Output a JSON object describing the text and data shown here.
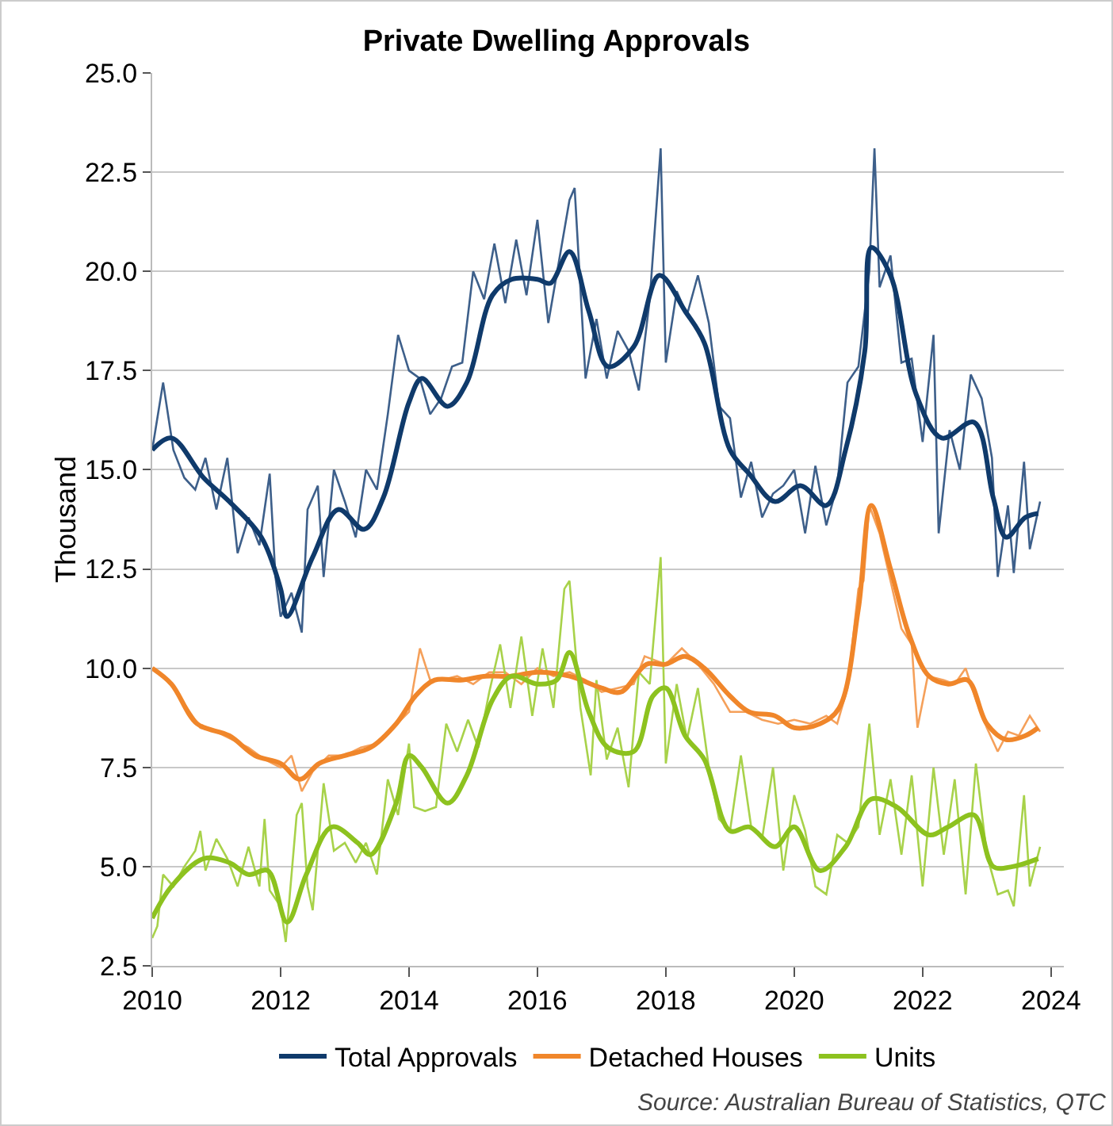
{
  "chart_data": {
    "type": "line",
    "title": "Private Dwelling Approvals",
    "ylabel": "Thousand",
    "xlim": [
      2010,
      2024.2
    ],
    "xticks": [
      2010,
      2012,
      2014,
      2016,
      2018,
      2020,
      2022,
      2024
    ],
    "ylim": [
      2.5,
      25
    ],
    "yticks": [
      {
        "value": 2.5,
        "label": "2.5"
      },
      {
        "value": 5,
        "label": "5.0"
      },
      {
        "value": 7.5,
        "label": "7.5"
      },
      {
        "value": 10,
        "label": "10.0"
      },
      {
        "value": 12.5,
        "label": "12.5"
      },
      {
        "value": 15,
        "label": "15.0"
      },
      {
        "value": 17.5,
        "label": "17.5"
      },
      {
        "value": 20,
        "label": "20.0"
      },
      {
        "value": 22.5,
        "label": "22.5"
      },
      {
        "value": 25,
        "label": "25.0"
      }
    ],
    "grid": "y",
    "legend": "bottom",
    "line_style": "solid",
    "marker": "none",
    "annotations": [
      "Source: Australian Bureau of Statistics, QTC"
    ],
    "series": [
      {
        "color": "#3d5f8a",
        "x": [
          2010.0,
          2010.17,
          2010.33,
          2010.5,
          2010.67,
          2010.83,
          2011.0,
          2011.17,
          2011.33,
          2011.5,
          2011.67,
          2011.83,
          2011.92,
          2012.0,
          2012.17,
          2012.33,
          2012.42,
          2012.58,
          2012.67,
          2012.83,
          2013.0,
          2013.17,
          2013.33,
          2013.5,
          2013.67,
          2013.83,
          2014.0,
          2014.17,
          2014.33,
          2014.5,
          2014.67,
          2014.83,
          2015.0,
          2015.17,
          2015.33,
          2015.5,
          2015.67,
          2015.83,
          2016.0,
          2016.17,
          2016.33,
          2016.5,
          2016.58,
          2016.75,
          2016.92,
          2017.08,
          2017.25,
          2017.42,
          2017.58,
          2017.75,
          2017.92,
          2018.0,
          2018.17,
          2018.33,
          2018.5,
          2018.67,
          2018.83,
          2019.0,
          2019.17,
          2019.33,
          2019.5,
          2019.67,
          2019.83,
          2020.0,
          2020.17,
          2020.33,
          2020.5,
          2020.67,
          2020.83,
          2021.0,
          2021.17,
          2021.25,
          2021.33,
          2021.5,
          2021.67,
          2021.83,
          2022.0,
          2022.17,
          2022.25,
          2022.42,
          2022.58,
          2022.75,
          2022.92,
          2023.08,
          2023.17,
          2023.33,
          2023.42,
          2023.58,
          2023.67,
          2023.83
        ],
        "values": [
          15.5,
          17.2,
          15.5,
          14.8,
          14.5,
          15.3,
          14.0,
          15.3,
          12.9,
          13.8,
          13.1,
          14.9,
          12.3,
          11.3,
          11.9,
          10.9,
          14.0,
          14.6,
          12.3,
          15.0,
          14.2,
          13.3,
          15.0,
          14.5,
          16.4,
          18.4,
          17.5,
          17.3,
          16.4,
          16.8,
          17.6,
          17.7,
          20.0,
          19.3,
          20.7,
          19.2,
          20.8,
          19.4,
          21.3,
          18.7,
          20.2,
          21.8,
          22.1,
          17.3,
          18.8,
          17.3,
          18.5,
          18.0,
          17.0,
          19.3,
          23.1,
          17.7,
          19.5,
          18.9,
          19.9,
          18.7,
          16.6,
          16.3,
          14.3,
          15.2,
          13.8,
          14.4,
          14.6,
          15.0,
          13.4,
          15.1,
          13.6,
          14.6,
          17.2,
          17.6,
          20.0,
          23.1,
          19.6,
          20.4,
          17.7,
          17.8,
          15.7,
          18.4,
          13.4,
          16.0,
          15.0,
          17.4,
          16.8,
          15.3,
          12.3,
          14.1,
          12.4,
          15.2,
          13.0,
          14.2
        ]
      },
      {
        "color": "#f5a05a",
        "x": [
          2010.0,
          2010.25,
          2010.5,
          2010.75,
          2011.0,
          2011.25,
          2011.5,
          2011.75,
          2012.0,
          2012.17,
          2012.33,
          2012.5,
          2012.75,
          2013.0,
          2013.25,
          2013.5,
          2013.75,
          2014.0,
          2014.17,
          2014.33,
          2014.5,
          2014.75,
          2015.0,
          2015.25,
          2015.5,
          2015.75,
          2016.0,
          2016.25,
          2016.5,
          2016.75,
          2017.0,
          2017.25,
          2017.5,
          2017.67,
          2017.83,
          2018.0,
          2018.25,
          2018.5,
          2018.75,
          2019.0,
          2019.25,
          2019.5,
          2019.75,
          2020.0,
          2020.25,
          2020.5,
          2020.67,
          2020.83,
          2021.0,
          2021.08,
          2021.17,
          2021.33,
          2021.5,
          2021.67,
          2021.83,
          2021.92,
          2022.08,
          2022.33,
          2022.5,
          2022.67,
          2022.83,
          2023.0,
          2023.17,
          2023.33,
          2023.5,
          2023.67,
          2023.83
        ],
        "values": [
          10.0,
          9.7,
          9.1,
          8.5,
          8.4,
          8.2,
          8.0,
          7.7,
          7.5,
          7.8,
          6.9,
          7.4,
          7.8,
          7.8,
          8.0,
          8.1,
          8.5,
          8.9,
          10.5,
          9.7,
          9.7,
          9.8,
          9.6,
          9.9,
          9.9,
          9.6,
          10.0,
          9.8,
          9.9,
          9.7,
          9.4,
          9.5,
          9.6,
          10.3,
          10.2,
          10.1,
          10.5,
          10.1,
          9.6,
          8.9,
          8.9,
          8.7,
          8.6,
          8.7,
          8.6,
          8.8,
          8.6,
          9.5,
          12.0,
          12.2,
          14.1,
          13.4,
          12.2,
          11.0,
          10.6,
          8.5,
          9.8,
          9.7,
          9.6,
          10.0,
          9.2,
          8.5,
          7.9,
          8.4,
          8.3,
          8.8,
          8.4
        ]
      },
      {
        "color": "#a8d24a",
        "x": [
          2010.0,
          2010.08,
          2010.17,
          2010.33,
          2010.5,
          2010.67,
          2010.75,
          2010.83,
          2011.0,
          2011.17,
          2011.33,
          2011.5,
          2011.67,
          2011.75,
          2011.83,
          2012.0,
          2012.08,
          2012.25,
          2012.33,
          2012.42,
          2012.5,
          2012.67,
          2012.83,
          2013.0,
          2013.17,
          2013.33,
          2013.5,
          2013.67,
          2013.83,
          2014.0,
          2014.08,
          2014.25,
          2014.42,
          2014.58,
          2014.75,
          2014.92,
          2015.08,
          2015.25,
          2015.42,
          2015.58,
          2015.75,
          2015.92,
          2016.08,
          2016.25,
          2016.42,
          2016.5,
          2016.67,
          2016.83,
          2016.92,
          2017.08,
          2017.25,
          2017.42,
          2017.58,
          2017.75,
          2017.92,
          2018.0,
          2018.17,
          2018.33,
          2018.5,
          2018.67,
          2018.83,
          2019.0,
          2019.17,
          2019.33,
          2019.5,
          2019.67,
          2019.83,
          2020.0,
          2020.17,
          2020.33,
          2020.5,
          2020.67,
          2020.83,
          2021.0,
          2021.17,
          2021.33,
          2021.5,
          2021.67,
          2021.83,
          2022.0,
          2022.17,
          2022.33,
          2022.5,
          2022.67,
          2022.83,
          2023.0,
          2023.17,
          2023.33,
          2023.42,
          2023.58,
          2023.67,
          2023.83
        ],
        "values": [
          3.2,
          3.5,
          4.8,
          4.5,
          5.0,
          5.4,
          5.9,
          4.9,
          5.7,
          5.2,
          4.5,
          5.5,
          4.5,
          6.2,
          4.4,
          4.0,
          3.1,
          6.3,
          6.6,
          4.5,
          3.9,
          7.1,
          5.4,
          5.6,
          5.1,
          5.6,
          4.8,
          7.2,
          6.3,
          8.1,
          6.5,
          6.4,
          6.5,
          8.6,
          7.9,
          8.7,
          8.0,
          9.4,
          10.6,
          9.0,
          10.8,
          8.8,
          10.5,
          9.0,
          12.0,
          12.2,
          9.0,
          7.3,
          9.7,
          7.7,
          8.5,
          7.0,
          9.9,
          9.6,
          12.8,
          7.6,
          9.6,
          8.2,
          9.5,
          7.5,
          6.2,
          5.9,
          7.8,
          6.0,
          5.7,
          7.5,
          4.9,
          6.8,
          5.9,
          4.5,
          4.3,
          5.8,
          5.6,
          6.0,
          8.6,
          5.8,
          7.2,
          5.3,
          7.3,
          4.5,
          7.5,
          5.3,
          7.2,
          4.3,
          7.6,
          5.3,
          4.3,
          4.4,
          4.0,
          6.8,
          4.5,
          5.5
        ]
      },
      {
        "name": "Total Approvals",
        "color": "#0f3a6b",
        "x": [
          2010.0,
          2010.3,
          2010.8,
          2011.2,
          2011.7,
          2012.0,
          2012.1,
          2012.5,
          2012.9,
          2013.3,
          2013.6,
          2014.0,
          2014.2,
          2014.6,
          2014.9,
          2015.3,
          2015.6,
          2016.0,
          2016.2,
          2016.5,
          2016.8,
          2017.1,
          2017.5,
          2017.9,
          2018.3,
          2018.6,
          2019.0,
          2019.3,
          2019.7,
          2020.1,
          2020.5,
          2020.8,
          2021.1,
          2021.2,
          2021.5,
          2021.9,
          2022.3,
          2022.8,
          2023.1,
          2023.3,
          2023.6,
          2023.8
        ],
        "values": [
          15.5,
          15.8,
          14.8,
          14.2,
          13.3,
          12.0,
          11.3,
          12.8,
          14.0,
          13.5,
          14.3,
          16.7,
          17.3,
          16.6,
          17.2,
          19.4,
          19.8,
          19.8,
          19.7,
          20.5,
          19.0,
          17.6,
          18.1,
          19.9,
          19.0,
          18.2,
          15.5,
          14.9,
          14.2,
          14.6,
          14.1,
          15.5,
          18.0,
          20.6,
          19.9,
          16.9,
          15.8,
          16.2,
          14.3,
          13.3,
          13.8,
          13.9
        ]
      },
      {
        "name": "Detached Houses",
        "color": "#f0862a",
        "x": [
          2010.0,
          2010.3,
          2010.7,
          2011.2,
          2011.6,
          2012.0,
          2012.3,
          2012.6,
          2013.0,
          2013.4,
          2013.8,
          2014.1,
          2014.4,
          2014.8,
          2015.2,
          2015.6,
          2016.0,
          2016.5,
          2017.0,
          2017.3,
          2017.7,
          2018.0,
          2018.3,
          2018.6,
          2019.0,
          2019.3,
          2019.7,
          2020.0,
          2020.4,
          2020.7,
          2021.0,
          2021.2,
          2021.5,
          2021.8,
          2022.1,
          2022.4,
          2022.7,
          2023.0,
          2023.3,
          2023.6,
          2023.8
        ],
        "values": [
          10.0,
          9.6,
          8.6,
          8.3,
          7.8,
          7.6,
          7.2,
          7.6,
          7.8,
          8.0,
          8.6,
          9.3,
          9.7,
          9.7,
          9.8,
          9.8,
          9.9,
          9.8,
          9.5,
          9.4,
          10.1,
          10.1,
          10.3,
          10.0,
          9.3,
          8.9,
          8.8,
          8.5,
          8.6,
          9.0,
          11.5,
          14.1,
          12.5,
          10.8,
          9.8,
          9.6,
          9.7,
          8.6,
          8.2,
          8.3,
          8.5
        ]
      },
      {
        "name": "Units",
        "color": "#8dc21f",
        "x": [
          2010.0,
          2010.3,
          2010.8,
          2011.2,
          2011.5,
          2011.8,
          2012.1,
          2012.4,
          2012.8,
          2013.2,
          2013.4,
          2013.8,
          2014.0,
          2014.2,
          2014.6,
          2014.9,
          2015.3,
          2015.6,
          2016.0,
          2016.3,
          2016.5,
          2016.8,
          2017.1,
          2017.5,
          2017.8,
          2018.0,
          2018.3,
          2018.6,
          2019.0,
          2019.3,
          2019.7,
          2020.0,
          2020.4,
          2020.8,
          2021.2,
          2021.6,
          2022.1,
          2022.4,
          2022.8,
          2023.1,
          2023.4,
          2023.8
        ],
        "values": [
          3.7,
          4.5,
          5.2,
          5.1,
          4.8,
          4.9,
          3.6,
          4.8,
          6.0,
          5.6,
          5.3,
          6.6,
          7.8,
          7.5,
          6.6,
          7.3,
          9.2,
          9.8,
          9.6,
          9.7,
          10.4,
          8.9,
          8.0,
          7.9,
          9.3,
          9.5,
          8.3,
          7.7,
          5.9,
          6.0,
          5.5,
          6.0,
          4.9,
          5.5,
          6.7,
          6.5,
          5.8,
          6.0,
          6.3,
          5.0,
          5.0,
          5.2
        ]
      }
    ]
  }
}
